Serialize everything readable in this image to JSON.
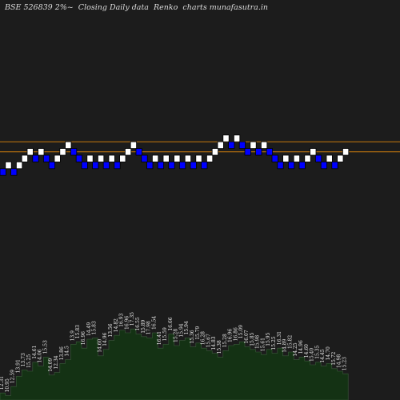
{
  "header": {
    "title": "BSE 526839 2%~  Closing Daily data  Renko  charts munafasutra.in"
  },
  "colors": {
    "background": "#000000",
    "plot_background": "#1c1c1c",
    "up_brick": "#ffffff",
    "down_brick": "#0000ff",
    "level_line": "#c87a0c",
    "volume_fill": "#143214",
    "volume_stroke": "#3a5a3a",
    "text": "#e8e8e8"
  },
  "chart_data": {
    "type": "renko",
    "brick_size_label": "2%",
    "brick_levels": [
      -2,
      -1,
      -2,
      -1,
      0,
      1,
      0,
      1,
      0,
      -1,
      0,
      1,
      2,
      1,
      0,
      -1,
      0,
      -1,
      0,
      -1,
      0,
      -1,
      0,
      1,
      2,
      1,
      0,
      -1,
      0,
      -1,
      0,
      -1,
      0,
      -1,
      0,
      -1,
      0,
      -1,
      0,
      1,
      2,
      3,
      2,
      3,
      2,
      1,
      2,
      1,
      2,
      1,
      0,
      -1,
      0,
      -1,
      0,
      -1,
      0,
      1,
      0,
      -1,
      0,
      -1,
      0,
      1
    ],
    "brick_directions": [
      "down",
      "up",
      "down",
      "up",
      "up",
      "up",
      "down",
      "up",
      "down",
      "down",
      "up",
      "up",
      "up",
      "down",
      "down",
      "down",
      "up",
      "down",
      "up",
      "down",
      "up",
      "down",
      "up",
      "up",
      "up",
      "down",
      "down",
      "down",
      "up",
      "down",
      "up",
      "down",
      "up",
      "down",
      "up",
      "down",
      "up",
      "down",
      "up",
      "up",
      "up",
      "up",
      "down",
      "up",
      "down",
      "down",
      "up",
      "down",
      "up",
      "down",
      "down",
      "down",
      "up",
      "down",
      "up",
      "down",
      "up",
      "up",
      "down",
      "down",
      "up",
      "down",
      "up",
      "up"
    ],
    "horizontal_levels": [
      2,
      0.5
    ],
    "volume_labels": [
      "12.31",
      "10.95",
      "12.59",
      "13.91",
      "13.73",
      "15.25",
      "14.61",
      "14.06",
      "15.53",
      "14.09",
      "12.34",
      "13.86",
      "14.5",
      "13.9",
      "15.83",
      "16.96",
      "14.49",
      "15.83",
      "14.60",
      "14.96",
      "13.56",
      "14.82",
      "16.93",
      "16.96",
      "17.35",
      "16.55",
      "15.89",
      "17.98",
      "16.54",
      "16.41",
      "15.59",
      "16.66",
      "15.28",
      "15.94",
      "15.94",
      "15.36",
      "15.79",
      "16.28",
      "15.67",
      "14.83",
      "15.38",
      "15.28",
      "16.96",
      "16.86",
      "15.09",
      "16.07",
      "15.85",
      "15.98",
      "15.61",
      "15.95",
      "15.25",
      "16.31",
      "14.89",
      "15.82",
      "14.25",
      "14.96",
      "14.60",
      "15.40",
      "15.35",
      "14.45",
      "14.70",
      "15.72",
      "14.98",
      "15.23"
    ],
    "volume_bars": [
      3,
      1,
      8,
      16,
      21,
      20,
      27,
      24,
      31,
      17,
      19,
      26,
      29,
      41,
      43,
      38,
      45,
      46,
      32,
      37,
      44,
      48,
      52,
      50,
      53,
      49,
      47,
      46,
      50,
      38,
      41,
      49,
      40,
      44,
      46,
      39,
      42,
      38,
      36,
      34,
      31,
      36,
      40,
      41,
      43,
      39,
      37,
      35,
      33,
      37,
      34,
      38,
      32,
      35,
      29,
      31,
      28,
      25,
      27,
      24,
      26,
      22,
      20,
      18
    ],
    "grid": false
  }
}
